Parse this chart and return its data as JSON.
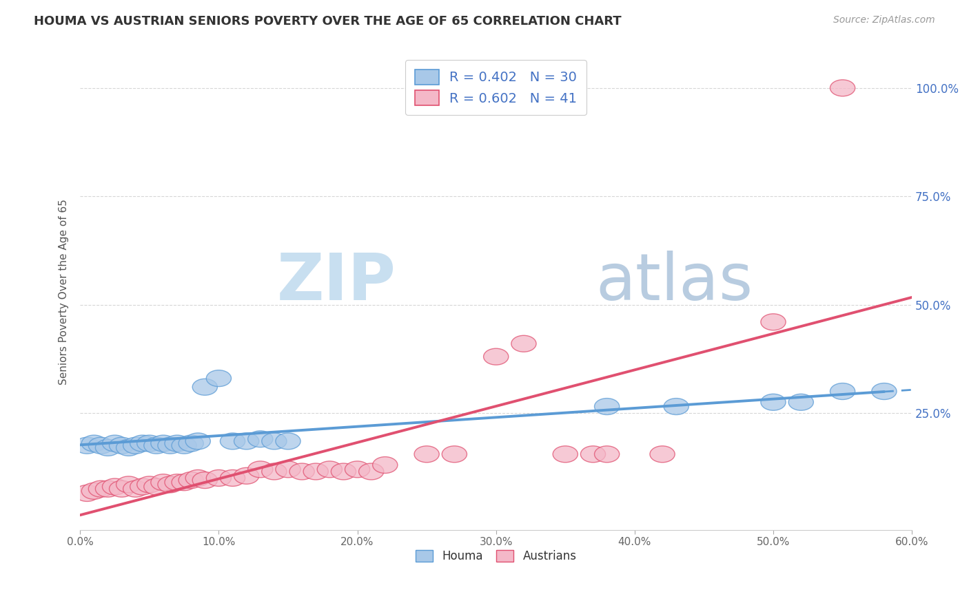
{
  "title": "HOUMA VS AUSTRIAN SENIORS POVERTY OVER THE AGE OF 65 CORRELATION CHART",
  "source_text": "Source: ZipAtlas.com",
  "ylabel": "Seniors Poverty Over the Age of 65",
  "xlim": [
    0.0,
    0.6
  ],
  "ylim": [
    -0.02,
    1.08
  ],
  "xtick_labels": [
    "0.0%",
    "10.0%",
    "20.0%",
    "30.0%",
    "40.0%",
    "50.0%",
    "60.0%"
  ],
  "xtick_values": [
    0.0,
    0.1,
    0.2,
    0.3,
    0.4,
    0.5,
    0.6
  ],
  "ytick_values": [
    0.25,
    0.5,
    0.75,
    1.0
  ],
  "right_ytick_labels": [
    "25.0%",
    "50.0%",
    "75.0%",
    "100.0%"
  ],
  "houma_R": 0.402,
  "houma_N": 30,
  "austrians_R": 0.602,
  "austrians_N": 41,
  "houma_color": "#a8c8e8",
  "houma_edge_color": "#5b9bd5",
  "houma_line_color": "#5b9bd5",
  "austrians_color": "#f4b8c8",
  "austrians_edge_color": "#e05070",
  "austrians_line_color": "#e05070",
  "legend_text_color": "#4472c4",
  "watermark_zip_color": "#c8dff0",
  "watermark_atlas_color": "#b8cce0",
  "background_color": "#ffffff",
  "plot_bg_color": "#ffffff",
  "grid_color": "#cccccc",
  "houma_scatter": [
    [
      0.005,
      0.175
    ],
    [
      0.01,
      0.18
    ],
    [
      0.015,
      0.175
    ],
    [
      0.02,
      0.17
    ],
    [
      0.025,
      0.18
    ],
    [
      0.03,
      0.175
    ],
    [
      0.035,
      0.17
    ],
    [
      0.04,
      0.175
    ],
    [
      0.045,
      0.18
    ],
    [
      0.05,
      0.18
    ],
    [
      0.055,
      0.175
    ],
    [
      0.06,
      0.18
    ],
    [
      0.065,
      0.175
    ],
    [
      0.07,
      0.18
    ],
    [
      0.075,
      0.175
    ],
    [
      0.08,
      0.18
    ],
    [
      0.085,
      0.185
    ],
    [
      0.09,
      0.31
    ],
    [
      0.1,
      0.33
    ],
    [
      0.11,
      0.185
    ],
    [
      0.12,
      0.185
    ],
    [
      0.13,
      0.19
    ],
    [
      0.14,
      0.185
    ],
    [
      0.15,
      0.185
    ],
    [
      0.38,
      0.265
    ],
    [
      0.43,
      0.265
    ],
    [
      0.5,
      0.275
    ],
    [
      0.52,
      0.275
    ],
    [
      0.55,
      0.3
    ],
    [
      0.58,
      0.3
    ]
  ],
  "austrians_scatter": [
    [
      0.005,
      0.065
    ],
    [
      0.01,
      0.07
    ],
    [
      0.015,
      0.075
    ],
    [
      0.02,
      0.075
    ],
    [
      0.025,
      0.08
    ],
    [
      0.03,
      0.075
    ],
    [
      0.035,
      0.085
    ],
    [
      0.04,
      0.075
    ],
    [
      0.045,
      0.08
    ],
    [
      0.05,
      0.085
    ],
    [
      0.055,
      0.08
    ],
    [
      0.06,
      0.09
    ],
    [
      0.065,
      0.085
    ],
    [
      0.07,
      0.09
    ],
    [
      0.075,
      0.09
    ],
    [
      0.08,
      0.095
    ],
    [
      0.085,
      0.1
    ],
    [
      0.09,
      0.095
    ],
    [
      0.1,
      0.1
    ],
    [
      0.11,
      0.1
    ],
    [
      0.12,
      0.105
    ],
    [
      0.13,
      0.12
    ],
    [
      0.14,
      0.115
    ],
    [
      0.15,
      0.12
    ],
    [
      0.16,
      0.115
    ],
    [
      0.17,
      0.115
    ],
    [
      0.18,
      0.12
    ],
    [
      0.19,
      0.115
    ],
    [
      0.2,
      0.12
    ],
    [
      0.21,
      0.115
    ],
    [
      0.22,
      0.13
    ],
    [
      0.25,
      0.155
    ],
    [
      0.27,
      0.155
    ],
    [
      0.3,
      0.38
    ],
    [
      0.32,
      0.41
    ],
    [
      0.35,
      0.155
    ],
    [
      0.37,
      0.155
    ],
    [
      0.38,
      0.155
    ],
    [
      0.42,
      0.155
    ],
    [
      0.5,
      0.46
    ],
    [
      0.55,
      1.0
    ]
  ]
}
